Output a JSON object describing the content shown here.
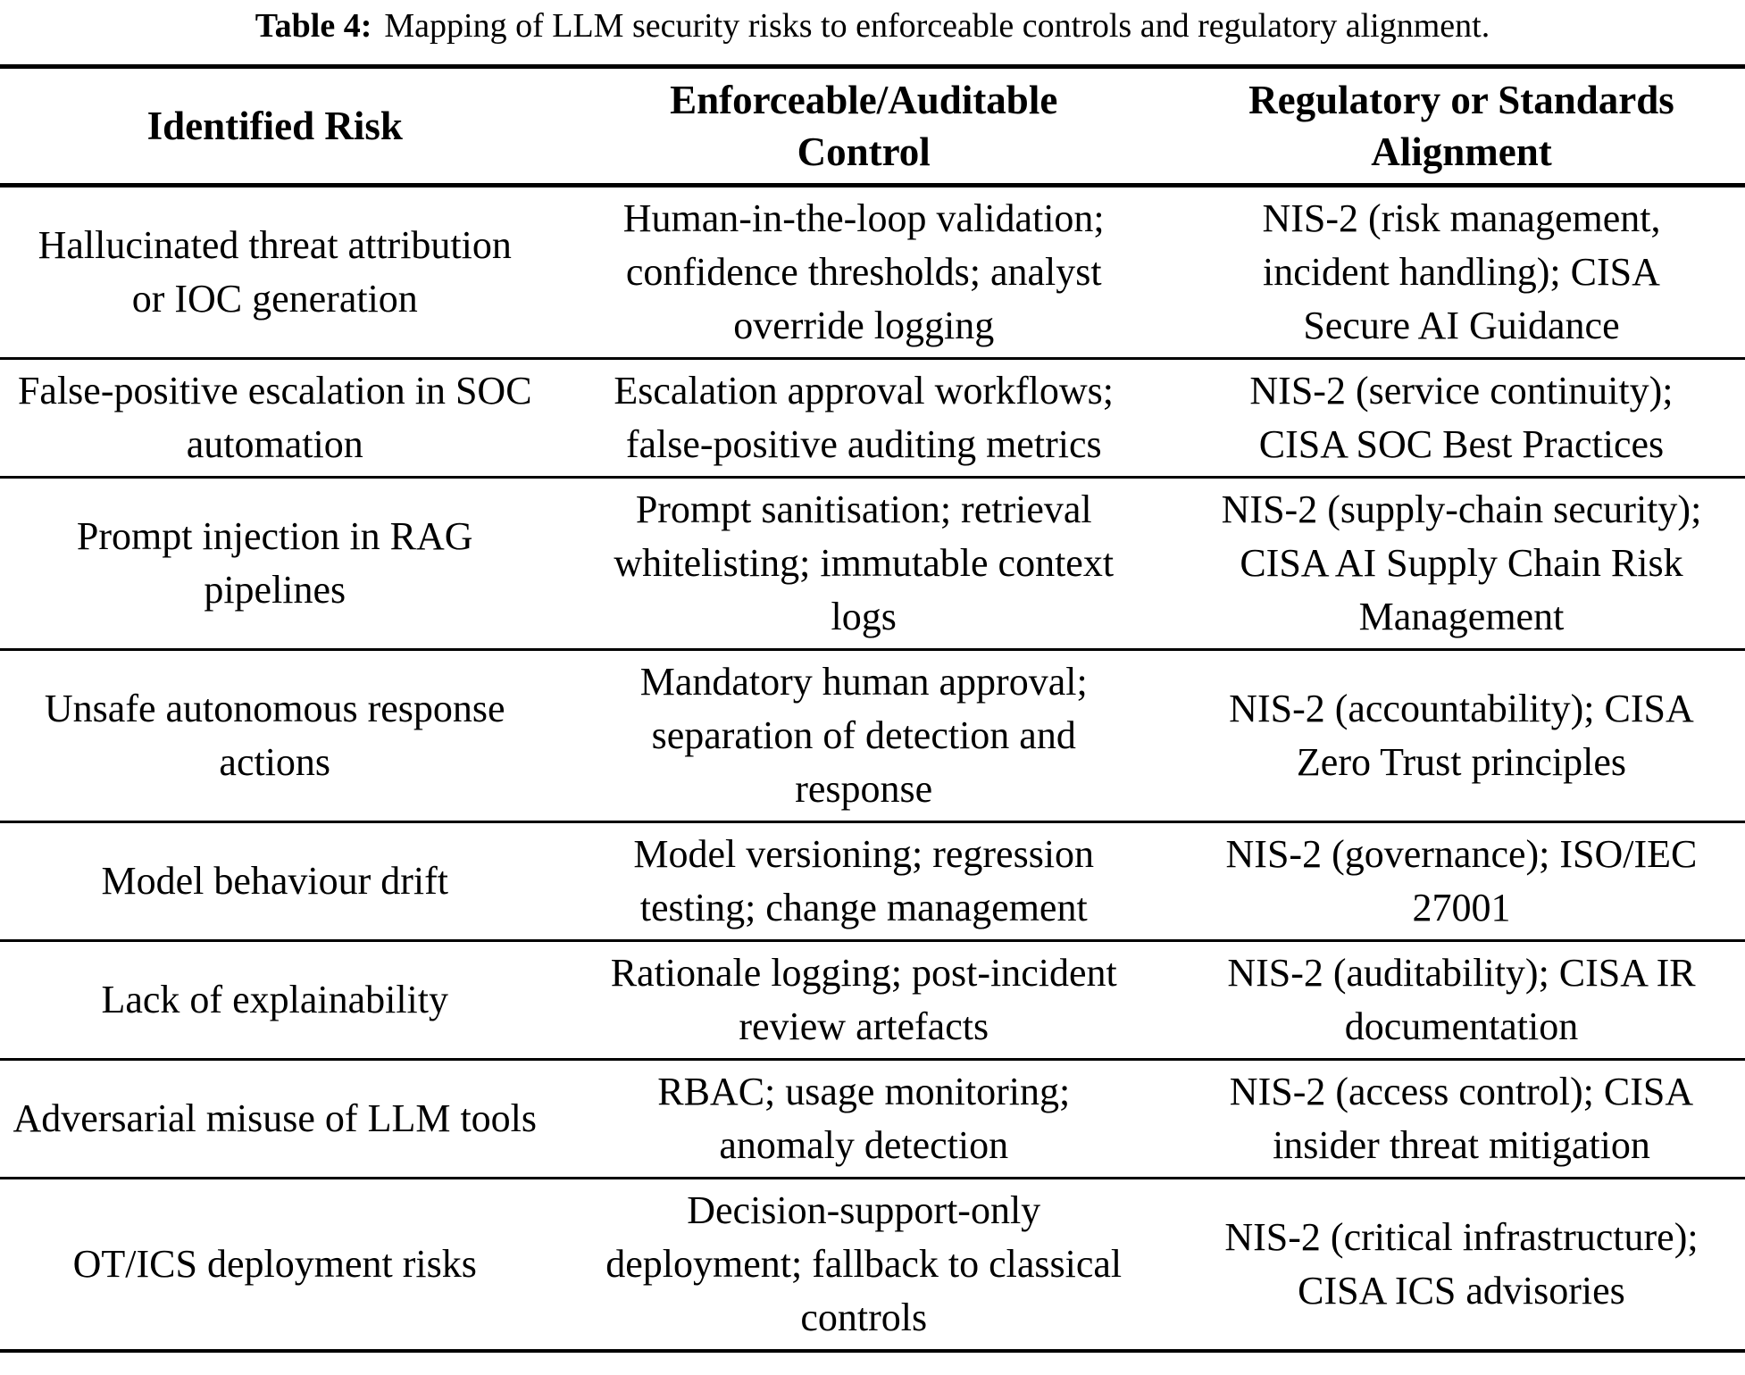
{
  "caption": {
    "label": "Table 4:",
    "text": "Mapping of LLM security risks to enforceable controls and regulatory alignment."
  },
  "colors": {
    "text": "#000000",
    "background": "#ffffff",
    "rule": "#000000"
  },
  "table": {
    "columns": [
      "Identified Risk",
      "Enforceable/Auditable\nControl",
      "Regulatory or Standards\nAlignment"
    ],
    "rows": [
      {
        "risk": "Hallucinated threat attribution\nor IOC generation",
        "control": "Human-in-the-loop validation;\nconfidence thresholds; analyst\noverride logging",
        "alignment": "NIS-2 (risk management,\nincident handling); CISA\nSecure AI Guidance"
      },
      {
        "risk": "False-positive escalation in SOC\nautomation",
        "control": "Escalation approval workflows;\nfalse-positive auditing metrics",
        "alignment": "NIS-2 (service continuity);\nCISA SOC Best Practices"
      },
      {
        "risk": "Prompt injection in RAG\npipelines",
        "control": "Prompt sanitisation; retrieval\nwhitelisting; immutable context\nlogs",
        "alignment": "NIS-2 (supply-chain security);\nCISA AI Supply Chain Risk\nManagement"
      },
      {
        "risk": "Unsafe autonomous response\nactions",
        "control": "Mandatory human approval;\nseparation of detection and\nresponse",
        "alignment": "NIS-2 (accountability); CISA\nZero Trust principles"
      },
      {
        "risk": "Model behaviour drift",
        "control": "Model versioning; regression\ntesting; change management",
        "alignment": "NIS-2 (governance); ISO/IEC\n27001"
      },
      {
        "risk": "Lack of explainability",
        "control": "Rationale logging; post-incident\nreview artefacts",
        "alignment": "NIS-2 (auditability); CISA IR\ndocumentation"
      },
      {
        "risk": "Adversarial misuse of LLM tools",
        "control": "RBAC; usage monitoring;\nanomaly detection",
        "alignment": "NIS-2 (access control); CISA\ninsider threat mitigation"
      },
      {
        "risk": "OT/ICS deployment risks",
        "control": "Decision-support-only\ndeployment; fallback to classical\ncontrols",
        "alignment": "NIS-2 (critical infrastructure);\nCISA ICS advisories"
      }
    ]
  }
}
